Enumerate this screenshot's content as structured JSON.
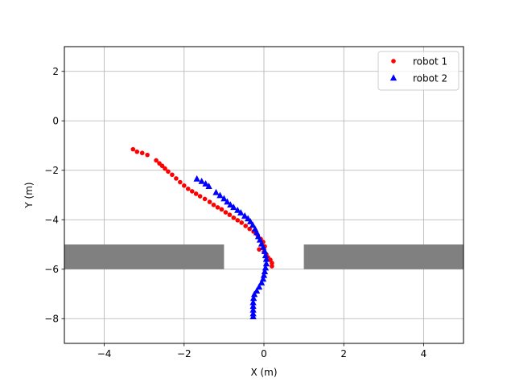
{
  "chart_data": {
    "type": "scatter",
    "title": "",
    "xlabel": "X (m)",
    "ylabel": "Y (m)",
    "xlim": [
      -5,
      5
    ],
    "ylim": [
      -9,
      3
    ],
    "xticks": [
      -4,
      -2,
      0,
      2,
      4
    ],
    "xtick_labels": [
      "−4",
      "−2",
      "0",
      "2",
      "4"
    ],
    "yticks": [
      2,
      0,
      -2,
      -4,
      -6,
      -8
    ],
    "ytick_labels": [
      "2",
      "0",
      "−2",
      "−4",
      "−6",
      "−8"
    ],
    "grid": true,
    "legend_position": "top-right",
    "obstacles": {
      "color": "#808080",
      "rects": [
        {
          "x0": -5,
          "x1": -1,
          "y0": -6,
          "y1": -5
        },
        {
          "x0": 1,
          "x1": 5,
          "y0": -6,
          "y1": -5
        }
      ]
    },
    "series": [
      {
        "name": "robot 1",
        "marker": "circle",
        "color": "#ff0000",
        "points": [
          [
            -3.28,
            -1.15
          ],
          [
            -3.18,
            -1.25
          ],
          [
            -3.05,
            -1.3
          ],
          [
            -2.92,
            -1.38
          ],
          [
            -2.7,
            -1.6
          ],
          [
            -2.62,
            -1.72
          ],
          [
            -2.55,
            -1.82
          ],
          [
            -2.48,
            -1.93
          ],
          [
            -2.4,
            -2.05
          ],
          [
            -2.3,
            -2.18
          ],
          [
            -2.2,
            -2.33
          ],
          [
            -2.1,
            -2.48
          ],
          [
            -2.0,
            -2.62
          ],
          [
            -1.9,
            -2.75
          ],
          [
            -1.8,
            -2.85
          ],
          [
            -1.7,
            -2.95
          ],
          [
            -1.6,
            -3.05
          ],
          [
            -1.48,
            -3.16
          ],
          [
            -1.36,
            -3.28
          ],
          [
            -1.26,
            -3.4
          ],
          [
            -1.16,
            -3.5
          ],
          [
            -1.06,
            -3.58
          ],
          [
            -0.96,
            -3.7
          ],
          [
            -0.86,
            -3.8
          ],
          [
            -0.76,
            -3.92
          ],
          [
            -0.66,
            -4.02
          ],
          [
            -0.56,
            -4.12
          ],
          [
            -0.46,
            -4.25
          ],
          [
            -0.36,
            -4.37
          ],
          [
            -0.26,
            -4.48
          ],
          [
            -0.16,
            -4.62
          ],
          [
            -0.08,
            -4.78
          ],
          [
            -0.02,
            -4.9
          ],
          [
            0.02,
            -5.08
          ],
          [
            -0.12,
            -5.2
          ],
          [
            0.0,
            -5.3
          ],
          [
            0.06,
            -5.4
          ],
          [
            0.1,
            -5.52
          ],
          [
            0.16,
            -5.62
          ],
          [
            0.2,
            -5.75
          ],
          [
            0.2,
            -5.88
          ]
        ]
      },
      {
        "name": "robot 2",
        "marker": "triangle",
        "color": "#0000ff",
        "points": [
          [
            -1.68,
            -2.35
          ],
          [
            -1.56,
            -2.45
          ],
          [
            -1.46,
            -2.55
          ],
          [
            -1.38,
            -2.65
          ],
          [
            -1.2,
            -2.9
          ],
          [
            -1.1,
            -3.02
          ],
          [
            -1.0,
            -3.15
          ],
          [
            -0.92,
            -3.28
          ],
          [
            -0.84,
            -3.4
          ],
          [
            -0.76,
            -3.5
          ],
          [
            -0.66,
            -3.62
          ],
          [
            -0.58,
            -3.72
          ],
          [
            -0.48,
            -3.85
          ],
          [
            -0.4,
            -3.96
          ],
          [
            -0.34,
            -4.08
          ],
          [
            -0.28,
            -4.22
          ],
          [
            -0.22,
            -4.38
          ],
          [
            -0.18,
            -4.52
          ],
          [
            -0.14,
            -4.68
          ],
          [
            -0.1,
            -4.82
          ],
          [
            -0.06,
            -4.98
          ],
          [
            -0.02,
            -5.12
          ],
          [
            0.02,
            -5.28
          ],
          [
            0.04,
            -5.45
          ],
          [
            0.06,
            -5.6
          ],
          [
            0.06,
            -5.78
          ],
          [
            0.04,
            -5.95
          ],
          [
            0.02,
            -6.1
          ],
          [
            0.0,
            -6.25
          ],
          [
            -0.02,
            -6.4
          ],
          [
            -0.06,
            -6.55
          ],
          [
            -0.12,
            -6.72
          ],
          [
            -0.18,
            -6.88
          ],
          [
            -0.24,
            -7.02
          ],
          [
            -0.26,
            -7.18
          ],
          [
            -0.27,
            -7.35
          ],
          [
            -0.27,
            -7.5
          ],
          [
            -0.27,
            -7.65
          ],
          [
            -0.27,
            -7.8
          ],
          [
            -0.27,
            -7.92
          ]
        ]
      }
    ]
  }
}
